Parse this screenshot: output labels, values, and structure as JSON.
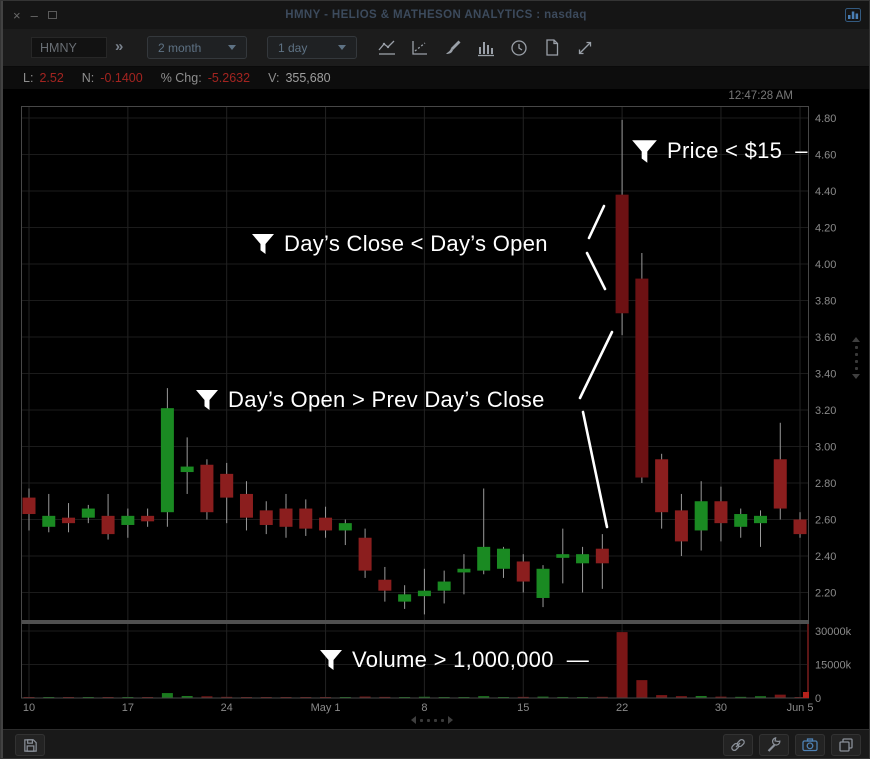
{
  "window": {
    "title": "HMNY - HELIOS & MATHESON ANALYTICS : nasdaq",
    "close_glyph": "×",
    "minimize_glyph": "–"
  },
  "toolbar": {
    "symbol_value": "HMNY",
    "expand_glyph": "»",
    "range_value": "2 month",
    "interval_value": "1 day",
    "chart_icons": [
      "line-chart",
      "linear-regression",
      "drawing-brush",
      "volume-histogram",
      "clock",
      "document",
      "expand-arrows"
    ]
  },
  "status_bar": {
    "last_label": "L:",
    "last_value": "2.52",
    "net_label": "N:",
    "net_value": "-0.1400",
    "pct_label": "% Chg:",
    "pct_value": "-5.2632",
    "volume_label": "V:",
    "volume_value": "355,680"
  },
  "chart": {
    "clock": "12:47:28 AM"
  },
  "filters": {
    "price": {
      "label": "Price < $15",
      "pointer": "–"
    },
    "close_open": {
      "label": "Day’s Close < Day’s Open"
    },
    "open_prev_close": {
      "label": "Day’s Open > Prev Day’s Close"
    },
    "volume": {
      "label": "Volume > 1,000,000",
      "pointer": "—"
    }
  },
  "colors": {
    "up": "#1a8a22",
    "down": "#8b1e1e",
    "big_down": "#6d1113",
    "wick": "#9a9a9a",
    "vol_up": "#1a7a1e",
    "vol_down": "#7a1616",
    "grid_h": "#1b1b1b",
    "grid_v": "#222222",
    "axis_text": "#8a8a8a",
    "border": "#474747",
    "divider": "#4f4f4f",
    "volume_edge": "#5c1616",
    "last_volume_marker": "#b5221c",
    "accent_blue": "#4a7fb5",
    "annotation": "#ffffff"
  },
  "chart_data": {
    "type": "candlestick",
    "symbol": "HMNY",
    "title": "HMNY - HELIOS & MATHESON ANALYTICS : nasdaq",
    "price_axis": {
      "min": 2.2,
      "max": 4.8,
      "step": 0.2
    },
    "volume_axis": {
      "labels": [
        "30000k",
        "15000k",
        "0"
      ],
      "max_k": 30000
    },
    "x_ticks": [
      {
        "index": 0,
        "label": "10"
      },
      {
        "index": 5,
        "label": "17"
      },
      {
        "index": 10,
        "label": "24"
      },
      {
        "index": 15,
        "label": "May 1"
      },
      {
        "index": 20,
        "label": "8"
      },
      {
        "index": 25,
        "label": "15"
      },
      {
        "index": 30,
        "label": "22"
      },
      {
        "index": 35,
        "label": "30"
      },
      {
        "index": 39,
        "label": "Jun 5"
      }
    ],
    "candles": [
      {
        "date": "Apr 10",
        "o": 2.72,
        "h": 2.77,
        "l": 2.54,
        "c": 2.63,
        "v_k": 300
      },
      {
        "date": "Apr 11",
        "o": 2.56,
        "h": 2.74,
        "l": 2.53,
        "c": 2.62,
        "v_k": 260
      },
      {
        "date": "Apr 12",
        "o": 2.61,
        "h": 2.69,
        "l": 2.53,
        "c": 2.58,
        "v_k": 210
      },
      {
        "date": "Apr 13",
        "o": 2.61,
        "h": 2.68,
        "l": 2.58,
        "c": 2.66,
        "v_k": 230
      },
      {
        "date": "Apr 16",
        "o": 2.62,
        "h": 2.74,
        "l": 2.49,
        "c": 2.52,
        "v_k": 360
      },
      {
        "date": "Apr 17",
        "o": 2.57,
        "h": 2.66,
        "l": 2.5,
        "c": 2.62,
        "v_k": 280
      },
      {
        "date": "Apr 18",
        "o": 2.62,
        "h": 2.66,
        "l": 2.56,
        "c": 2.59,
        "v_k": 250
      },
      {
        "date": "Apr 19",
        "o": 2.64,
        "h": 3.32,
        "l": 2.56,
        "c": 3.21,
        "v_k": 2200
      },
      {
        "date": "Apr 20",
        "o": 2.86,
        "h": 3.05,
        "l": 2.74,
        "c": 2.89,
        "v_k": 900
      },
      {
        "date": "Apr 23",
        "o": 2.9,
        "h": 2.93,
        "l": 2.6,
        "c": 2.64,
        "v_k": 750
      },
      {
        "date": "Apr 24",
        "o": 2.85,
        "h": 2.91,
        "l": 2.58,
        "c": 2.72,
        "v_k": 520
      },
      {
        "date": "Apr 25",
        "o": 2.74,
        "h": 2.81,
        "l": 2.54,
        "c": 2.61,
        "v_k": 430
      },
      {
        "date": "Apr 26",
        "o": 2.65,
        "h": 2.7,
        "l": 2.52,
        "c": 2.57,
        "v_k": 380
      },
      {
        "date": "Apr 27",
        "o": 2.66,
        "h": 2.74,
        "l": 2.5,
        "c": 2.56,
        "v_k": 410
      },
      {
        "date": "Apr 30",
        "o": 2.66,
        "h": 2.71,
        "l": 2.51,
        "c": 2.55,
        "v_k": 360
      },
      {
        "date": "May 1",
        "o": 2.61,
        "h": 2.67,
        "l": 2.5,
        "c": 2.54,
        "v_k": 310
      },
      {
        "date": "May 2",
        "o": 2.54,
        "h": 2.6,
        "l": 2.46,
        "c": 2.58,
        "v_k": 280
      },
      {
        "date": "May 3",
        "o": 2.5,
        "h": 2.55,
        "l": 2.28,
        "c": 2.32,
        "v_k": 650
      },
      {
        "date": "May 4",
        "o": 2.27,
        "h": 2.34,
        "l": 2.15,
        "c": 2.21,
        "v_k": 500
      },
      {
        "date": "May 7",
        "o": 2.15,
        "h": 2.24,
        "l": 2.11,
        "c": 2.19,
        "v_k": 420
      },
      {
        "date": "May 8",
        "o": 2.18,
        "h": 2.33,
        "l": 2.08,
        "c": 2.21,
        "v_k": 560
      },
      {
        "date": "May 9",
        "o": 2.21,
        "h": 2.32,
        "l": 2.14,
        "c": 2.26,
        "v_k": 450
      },
      {
        "date": "May 10",
        "o": 2.31,
        "h": 2.41,
        "l": 2.19,
        "c": 2.33,
        "v_k": 380
      },
      {
        "date": "May 11",
        "o": 2.32,
        "h": 2.77,
        "l": 2.3,
        "c": 2.45,
        "v_k": 820
      },
      {
        "date": "May 14",
        "o": 2.33,
        "h": 2.45,
        "l": 2.28,
        "c": 2.44,
        "v_k": 430
      },
      {
        "date": "May 15",
        "o": 2.37,
        "h": 2.41,
        "l": 2.2,
        "c": 2.26,
        "v_k": 510
      },
      {
        "date": "May 16",
        "o": 2.17,
        "h": 2.35,
        "l": 2.12,
        "c": 2.33,
        "v_k": 620
      },
      {
        "date": "May 17",
        "o": 2.39,
        "h": 2.55,
        "l": 2.25,
        "c": 2.41,
        "v_k": 460
      },
      {
        "date": "May 18",
        "o": 2.36,
        "h": 2.45,
        "l": 2.2,
        "c": 2.41,
        "v_k": 410
      },
      {
        "date": "May 21",
        "o": 2.44,
        "h": 2.52,
        "l": 2.22,
        "c": 2.36,
        "v_k": 530
      },
      {
        "date": "May 22",
        "o": 4.38,
        "h": 4.79,
        "l": 3.61,
        "c": 3.73,
        "v_k": 29500
      },
      {
        "date": "May 23",
        "o": 3.92,
        "h": 4.06,
        "l": 2.8,
        "c": 2.83,
        "v_k": 8000
      },
      {
        "date": "May 24",
        "o": 2.93,
        "h": 2.96,
        "l": 2.55,
        "c": 2.64,
        "v_k": 1300
      },
      {
        "date": "May 25",
        "o": 2.65,
        "h": 2.74,
        "l": 2.4,
        "c": 2.48,
        "v_k": 820
      },
      {
        "date": "May 29",
        "o": 2.54,
        "h": 2.81,
        "l": 2.43,
        "c": 2.7,
        "v_k": 900
      },
      {
        "date": "May 30",
        "o": 2.7,
        "h": 2.78,
        "l": 2.48,
        "c": 2.58,
        "v_k": 620
      },
      {
        "date": "May 31",
        "o": 2.56,
        "h": 2.66,
        "l": 2.5,
        "c": 2.63,
        "v_k": 520
      },
      {
        "date": "Jun 1",
        "o": 2.58,
        "h": 2.65,
        "l": 2.45,
        "c": 2.62,
        "v_k": 800
      },
      {
        "date": "Jun 4",
        "o": 2.93,
        "h": 3.13,
        "l": 2.6,
        "c": 2.66,
        "v_k": 1500
      },
      {
        "date": "Jun 5",
        "o": 2.6,
        "h": 2.64,
        "l": 2.5,
        "c": 2.52,
        "v_k": 356
      }
    ]
  },
  "bottom_bar": {
    "icons_left": [
      "save"
    ],
    "icons_right": [
      "link",
      "wrench",
      "camera",
      "copy"
    ]
  }
}
